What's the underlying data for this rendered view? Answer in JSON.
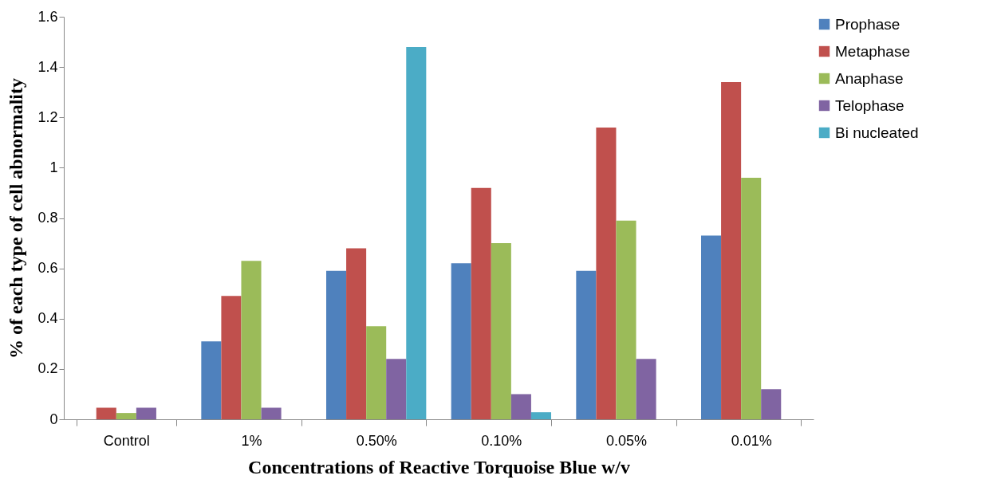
{
  "chart_data": {
    "type": "bar",
    "xlabel": "Concentrations of Reactive Torquoise Blue w/v",
    "ylabel": "% of each type of cell abnormality",
    "categories": [
      "Control",
      "1%",
      "0.50%",
      "0.10%",
      "0.05%",
      "0.01%"
    ],
    "series": [
      {
        "name": "Prophase",
        "color": "#4f81bd",
        "values": [
          0,
          0.31,
          0.59,
          0.62,
          0.59,
          0.73
        ]
      },
      {
        "name": "Metaphase",
        "color": "#c0504d",
        "values": [
          0.046,
          0.49,
          0.68,
          0.92,
          1.16,
          1.34
        ]
      },
      {
        "name": "Anaphase",
        "color": "#9bbb59",
        "values": [
          0.025,
          0.63,
          0.37,
          0.7,
          0.79,
          0.96
        ]
      },
      {
        "name": "Telophase",
        "color": "#8064a2",
        "values": [
          0.046,
          0.046,
          0.24,
          0.1,
          0.24,
          0.12
        ]
      },
      {
        "name": "Bi nucleated",
        "color": "#4bacc6",
        "values": [
          0,
          0,
          1.48,
          0.028,
          0,
          0
        ]
      }
    ],
    "ylim": [
      0,
      1.6
    ],
    "yticks": [
      0,
      0.2,
      0.4,
      0.6,
      0.8,
      1,
      1.2,
      1.4,
      1.6
    ],
    "grid": false,
    "legend": "right"
  }
}
